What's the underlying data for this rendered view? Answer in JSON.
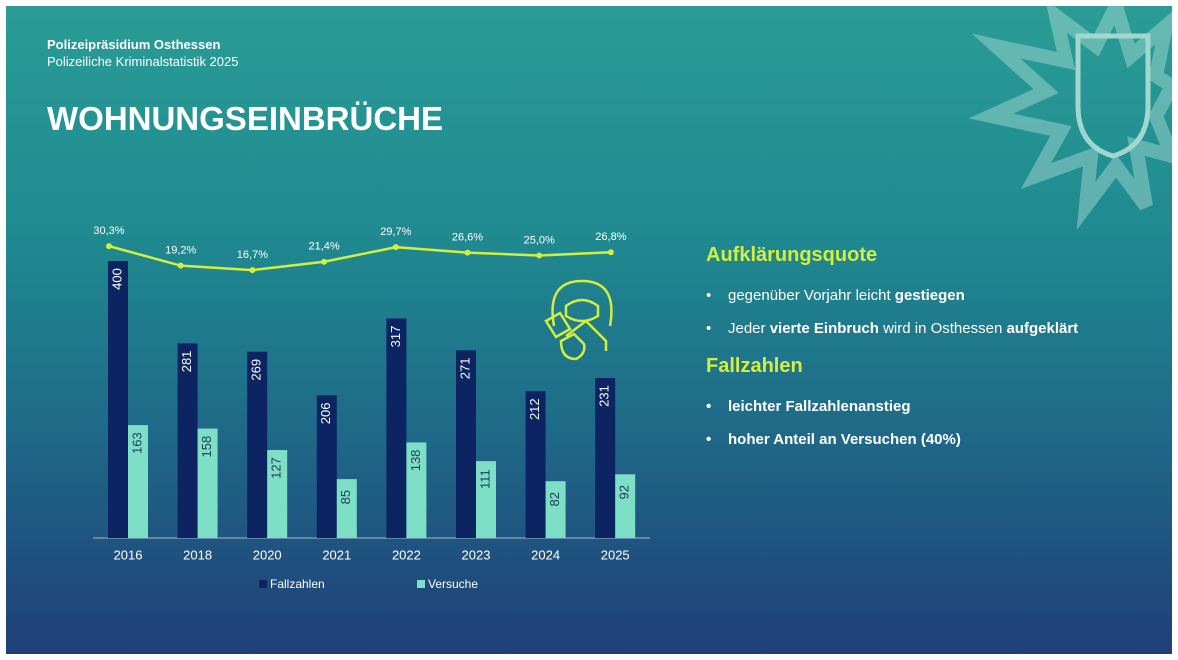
{
  "header": {
    "org": "Polizeipräsidium Osthessen",
    "subtitle": "Polizeiliche Kriminalstatistik 2025",
    "title": "WOHNUNGSEINBRÜCHE"
  },
  "chart_data": {
    "type": "bar",
    "categories": [
      "2016",
      "2018",
      "2020",
      "2021",
      "2022",
      "2023",
      "2024",
      "2025"
    ],
    "series": [
      {
        "name": "Fallzahlen",
        "color": "#0c2562",
        "values": [
          400,
          281,
          269,
          206,
          317,
          271,
          212,
          231
        ]
      },
      {
        "name": "Versuche",
        "color": "#7ddfc6",
        "values": [
          163,
          158,
          127,
          85,
          138,
          111,
          82,
          92
        ]
      },
      {
        "type": "line",
        "axis": "y2",
        "color": "#d4ee3c",
        "values": [
          30.3,
          19.2,
          16.7,
          21.4,
          29.7,
          26.6,
          25.0,
          26.8
        ],
        "value_labels": [
          "30,3%",
          "19,2%",
          "16,7%",
          "21,4%",
          "29,7%",
          "26,6%",
          "25,0%",
          "26,8%"
        ]
      }
    ],
    "ylim": [
      0,
      400
    ],
    "y2lim": [
      0,
      40
    ],
    "legend": "bottom"
  },
  "panel": {
    "heading1": "Aufklärungsquote",
    "bullets1": [
      [
        "gegenüber Vorjahr leicht ",
        "gestiegen"
      ],
      [
        "Jeder ",
        "vierte Einbruch",
        " wird in Osthessen ",
        "aufgeklärt"
      ]
    ],
    "heading2": "Fallzahlen",
    "bullets2": [
      "leichter Fallzahlenanstieg",
      "hoher Anteil an Versuchen (40%)"
    ]
  }
}
